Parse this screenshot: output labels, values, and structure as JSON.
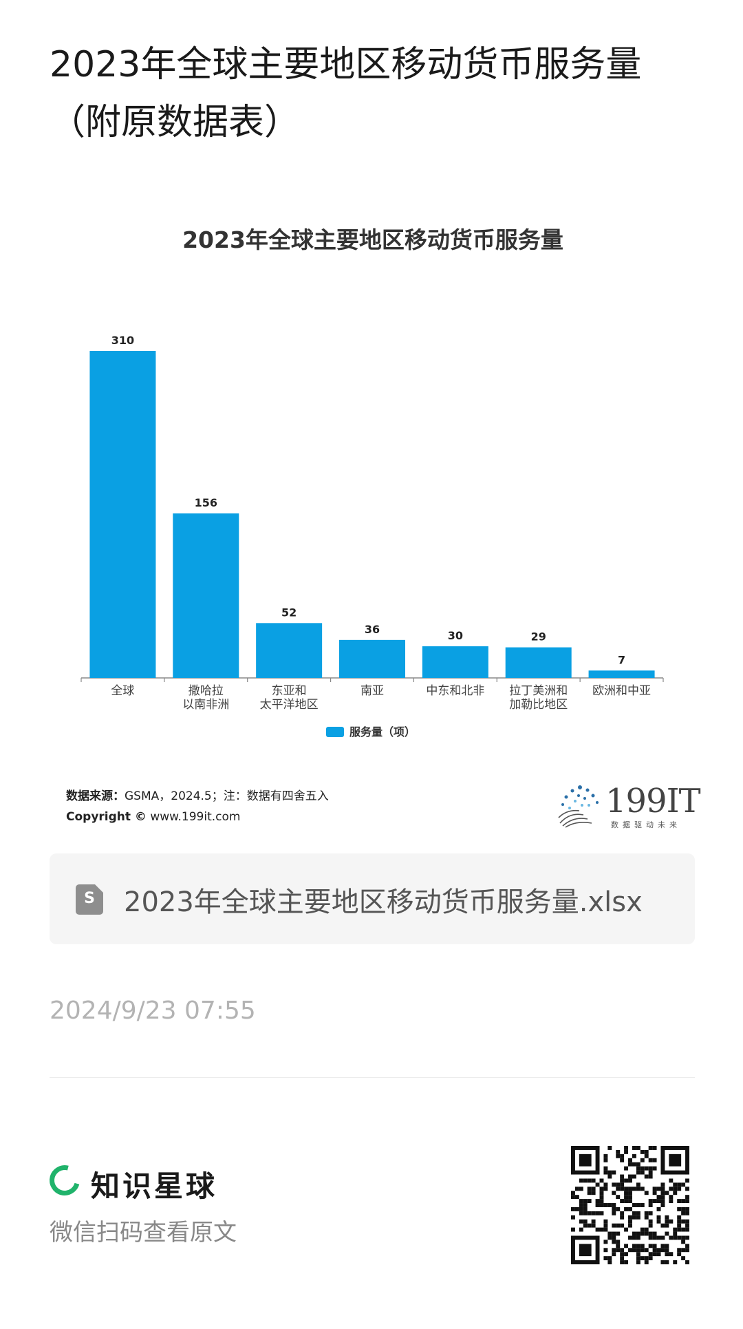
{
  "page": {
    "title": "2023年全球主要地区移动货币服务量（附原数据表）"
  },
  "chart_data": {
    "type": "bar",
    "title": "2023年全球主要地区移动货币服务量",
    "categories": [
      [
        "全球"
      ],
      [
        "撒哈拉",
        "以南非洲"
      ],
      [
        "东亚和",
        "太平洋地区"
      ],
      [
        "南亚"
      ],
      [
        "中东和北非"
      ],
      [
        "拉丁美洲和",
        "加勒比地区"
      ],
      [
        "欧洲和中亚"
      ]
    ],
    "series": [
      {
        "name": "服务量（项）",
        "values": [
          310,
          156,
          52,
          36,
          30,
          29,
          7
        ],
        "color": "#0aa0e3"
      }
    ],
    "ylim": [
      0,
      310
    ],
    "grid": false,
    "legend": "bottom-center",
    "data_labels": true
  },
  "source": {
    "label": "数据来源：",
    "text": "GSMA，2024.5；注：数据有四舍五入",
    "copyright_label": "Copyright ©",
    "copyright_url": "www.199it.com"
  },
  "logo": {
    "name": "199IT",
    "tagline": "数据驱动未来"
  },
  "attachment": {
    "icon": "spreadsheet-icon",
    "icon_letter": "S",
    "file_name": "2023年全球主要地区移动货币服务量.xlsx"
  },
  "post": {
    "timestamp": "2024/9/23 07:55"
  },
  "footer": {
    "brand_name": "知识星球",
    "subtitle": "微信扫码查看原文",
    "brand_color": "#20b36b"
  }
}
